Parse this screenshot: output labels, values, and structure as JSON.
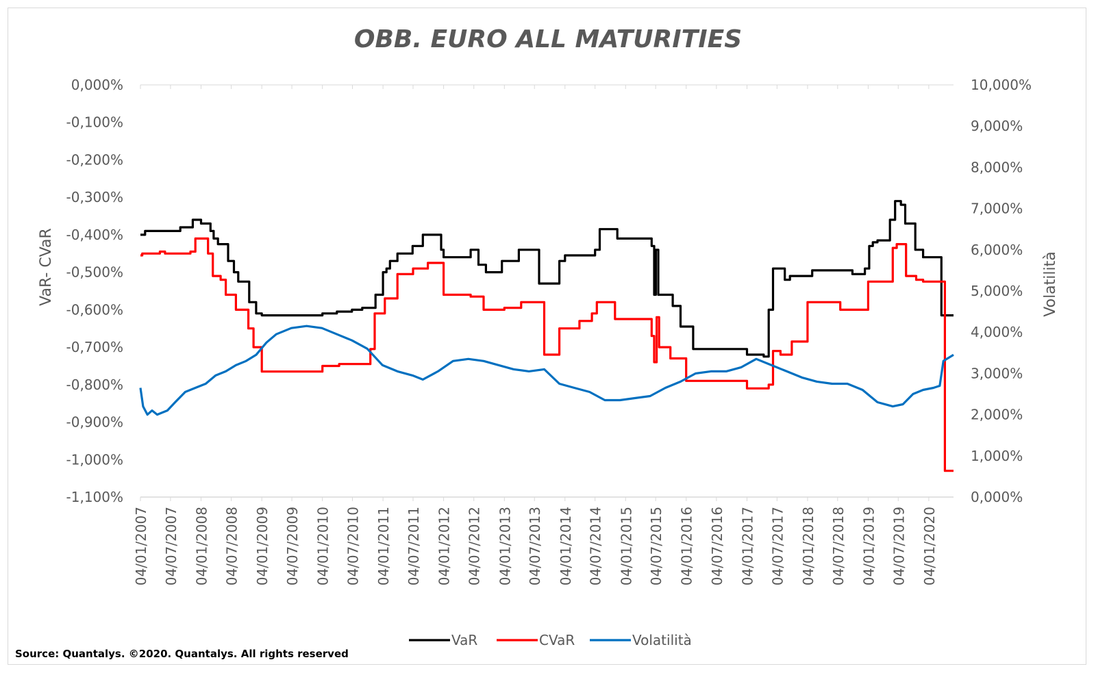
{
  "chart_data": {
    "type": "line",
    "title": "OBB. EURO ALL MATURITIES",
    "ylabel_left": "VaR- CVaR",
    "ylabel_right": "Volatilità",
    "source": "Source: Quantalys. ©2020. Quantalys. All rights reserved",
    "legend_position": "bottom",
    "grid": false,
    "x_start": "2007-01-04",
    "x_end": "2020-06-01",
    "x_tick_labels": [
      "04/01/2007",
      "04/07/2007",
      "04/01/2008",
      "04/07/2008",
      "04/01/2009",
      "04/07/2009",
      "04/01/2010",
      "04/07/2010",
      "04/01/2011",
      "04/07/2011",
      "04/01/2012",
      "04/07/2012",
      "04/01/2013",
      "04/07/2013",
      "04/01/2014",
      "04/07/2014",
      "04/01/2015",
      "04/07/2015",
      "04/01/2016",
      "04/07/2016",
      "04/01/2017",
      "04/07/2017",
      "04/01/2018",
      "04/07/2018",
      "04/01/2019",
      "04/07/2019",
      "04/01/2020"
    ],
    "y_left": {
      "min": -1.1,
      "max": 0.0,
      "tick_labels": [
        "0,000%",
        "-0,100%",
        "-0,200%",
        "-0,300%",
        "-0,400%",
        "-0,500%",
        "-0,600%",
        "-0,700%",
        "-0,800%",
        "-0,900%",
        "-1,000%",
        "-1,100%"
      ]
    },
    "y_right": {
      "min": 0.0,
      "max": 10.0,
      "tick_labels": [
        "10,000%",
        "9,000%",
        "8,000%",
        "7,000%",
        "6,000%",
        "5,000%",
        "4,000%",
        "3,000%",
        "2,000%",
        "1,000%",
        "0,000%"
      ]
    },
    "series": [
      {
        "name": "VaR",
        "axis": "left",
        "color": "#000000",
        "step": true,
        "points": [
          [
            "2007-01-04",
            -0.4
          ],
          [
            "2007-02-01",
            -0.39
          ],
          [
            "2007-08-15",
            -0.39
          ],
          [
            "2007-09-01",
            -0.38
          ],
          [
            "2007-11-15",
            -0.36
          ],
          [
            "2008-01-04",
            -0.37
          ],
          [
            "2008-03-01",
            -0.39
          ],
          [
            "2008-03-20",
            -0.41
          ],
          [
            "2008-04-15",
            -0.425
          ],
          [
            "2008-06-15",
            -0.47
          ],
          [
            "2008-07-20",
            -0.5
          ],
          [
            "2008-08-15",
            -0.525
          ],
          [
            "2008-10-20",
            -0.58
          ],
          [
            "2008-12-01",
            -0.61
          ],
          [
            "2009-01-04",
            -0.615
          ],
          [
            "2009-07-01",
            -0.615
          ],
          [
            "2010-01-04",
            -0.61
          ],
          [
            "2010-04-01",
            -0.605
          ],
          [
            "2010-07-01",
            -0.6
          ],
          [
            "2010-09-01",
            -0.595
          ],
          [
            "2010-11-20",
            -0.56
          ],
          [
            "2011-01-04",
            -0.5
          ],
          [
            "2011-01-25",
            -0.49
          ],
          [
            "2011-02-15",
            -0.47
          ],
          [
            "2011-04-01",
            -0.45
          ],
          [
            "2011-07-01",
            -0.43
          ],
          [
            "2011-09-01",
            -0.4
          ],
          [
            "2011-12-20",
            -0.44
          ],
          [
            "2012-01-04",
            -0.46
          ],
          [
            "2012-06-15",
            -0.44
          ],
          [
            "2012-08-01",
            -0.48
          ],
          [
            "2012-09-15",
            -0.5
          ],
          [
            "2012-12-20",
            -0.47
          ],
          [
            "2013-04-01",
            -0.44
          ],
          [
            "2013-08-01",
            -0.53
          ],
          [
            "2013-11-15",
            -0.53
          ],
          [
            "2013-12-01",
            -0.47
          ],
          [
            "2014-01-04",
            -0.455
          ],
          [
            "2014-07-04",
            -0.44
          ],
          [
            "2014-08-01",
            -0.385
          ],
          [
            "2014-11-15",
            -0.41
          ],
          [
            "2015-06-10",
            -0.43
          ],
          [
            "2015-06-25",
            -0.56
          ],
          [
            "2015-07-05",
            -0.44
          ],
          [
            "2015-07-20",
            -0.56
          ],
          [
            "2015-10-15",
            -0.59
          ],
          [
            "2015-12-01",
            -0.645
          ],
          [
            "2016-01-04",
            -0.645
          ],
          [
            "2016-02-15",
            -0.705
          ],
          [
            "2016-11-15",
            -0.705
          ],
          [
            "2017-01-04",
            -0.72
          ],
          [
            "2017-04-15",
            -0.725
          ],
          [
            "2017-05-15",
            -0.6
          ],
          [
            "2017-06-10",
            -0.49
          ],
          [
            "2017-08-20",
            -0.52
          ],
          [
            "2017-09-20",
            -0.51
          ],
          [
            "2018-02-01",
            -0.495
          ],
          [
            "2018-10-01",
            -0.505
          ],
          [
            "2018-12-15",
            -0.49
          ],
          [
            "2019-01-10",
            -0.43
          ],
          [
            "2019-02-01",
            -0.42
          ],
          [
            "2019-03-01",
            -0.415
          ],
          [
            "2019-05-15",
            -0.36
          ],
          [
            "2019-06-15",
            -0.31
          ],
          [
            "2019-07-20",
            -0.32
          ],
          [
            "2019-08-15",
            -0.37
          ],
          [
            "2019-10-15",
            -0.44
          ],
          [
            "2019-12-01",
            -0.46
          ],
          [
            "2020-03-15",
            -0.46
          ],
          [
            "2020-03-20",
            -0.615
          ],
          [
            "2020-06-01",
            -0.615
          ]
        ]
      },
      {
        "name": "CVaR",
        "axis": "left",
        "color": "#ff0000",
        "step": true,
        "points": [
          [
            "2007-01-04",
            -0.455
          ],
          [
            "2007-01-15",
            -0.45
          ],
          [
            "2007-05-01",
            -0.445
          ],
          [
            "2007-06-01",
            -0.45
          ],
          [
            "2007-11-01",
            -0.445
          ],
          [
            "2007-12-01",
            -0.41
          ],
          [
            "2008-02-15",
            -0.45
          ],
          [
            "2008-03-15",
            -0.51
          ],
          [
            "2008-05-01",
            -0.52
          ],
          [
            "2008-06-01",
            -0.56
          ],
          [
            "2008-08-01",
            -0.6
          ],
          [
            "2008-10-15",
            -0.65
          ],
          [
            "2008-11-15",
            -0.7
          ],
          [
            "2009-01-04",
            -0.765
          ],
          [
            "2010-01-04",
            -0.75
          ],
          [
            "2010-04-15",
            -0.745
          ],
          [
            "2010-10-20",
            -0.705
          ],
          [
            "2010-11-15",
            -0.61
          ],
          [
            "2011-01-15",
            -0.57
          ],
          [
            "2011-04-01",
            -0.505
          ],
          [
            "2011-07-04",
            -0.49
          ],
          [
            "2011-10-01",
            -0.475
          ],
          [
            "2012-01-04",
            -0.56
          ],
          [
            "2012-06-15",
            -0.565
          ],
          [
            "2012-09-01",
            -0.6
          ],
          [
            "2013-01-04",
            -0.595
          ],
          [
            "2013-04-15",
            -0.58
          ],
          [
            "2013-09-01",
            -0.72
          ],
          [
            "2013-12-01",
            -0.65
          ],
          [
            "2014-04-01",
            -0.63
          ],
          [
            "2014-06-15",
            -0.61
          ],
          [
            "2014-07-15",
            -0.58
          ],
          [
            "2014-11-01",
            -0.625
          ],
          [
            "2015-06-10",
            -0.67
          ],
          [
            "2015-06-25",
            -0.74
          ],
          [
            "2015-07-10",
            -0.62
          ],
          [
            "2015-07-25",
            -0.7
          ],
          [
            "2015-10-01",
            -0.73
          ],
          [
            "2016-01-04",
            -0.79
          ],
          [
            "2016-12-15",
            -0.79
          ],
          [
            "2017-01-04",
            -0.81
          ],
          [
            "2017-05-15",
            -0.8
          ],
          [
            "2017-06-10",
            -0.71
          ],
          [
            "2017-07-25",
            -0.72
          ],
          [
            "2017-10-01",
            -0.685
          ],
          [
            "2018-01-04",
            -0.58
          ],
          [
            "2018-07-20",
            -0.6
          ],
          [
            "2019-01-04",
            -0.525
          ],
          [
            "2019-06-01",
            -0.435
          ],
          [
            "2019-06-25",
            -0.425
          ],
          [
            "2019-08-20",
            -0.51
          ],
          [
            "2019-10-20",
            -0.52
          ],
          [
            "2019-12-01",
            -0.525
          ],
          [
            "2020-04-01",
            -0.525
          ],
          [
            "2020-04-10",
            -1.03
          ],
          [
            "2020-06-01",
            -1.03
          ]
        ]
      },
      {
        "name": "Volatilità",
        "axis": "right",
        "color": "#0070c0",
        "step": false,
        "points": [
          [
            "2007-01-04",
            2.65
          ],
          [
            "2007-01-20",
            2.2
          ],
          [
            "2007-02-15",
            2.0
          ],
          [
            "2007-03-15",
            2.1
          ],
          [
            "2007-04-15",
            2.0
          ],
          [
            "2007-05-15",
            2.05
          ],
          [
            "2007-06-15",
            2.1
          ],
          [
            "2007-08-01",
            2.3
          ],
          [
            "2007-10-01",
            2.55
          ],
          [
            "2007-12-01",
            2.65
          ],
          [
            "2008-02-01",
            2.75
          ],
          [
            "2008-04-01",
            2.95
          ],
          [
            "2008-06-01",
            3.05
          ],
          [
            "2008-08-01",
            3.2
          ],
          [
            "2008-10-01",
            3.3
          ],
          [
            "2008-12-01",
            3.45
          ],
          [
            "2009-02-01",
            3.75
          ],
          [
            "2009-04-01",
            3.95
          ],
          [
            "2009-07-01",
            4.1
          ],
          [
            "2009-10-01",
            4.15
          ],
          [
            "2010-01-01",
            4.1
          ],
          [
            "2010-04-01",
            3.95
          ],
          [
            "2010-07-01",
            3.8
          ],
          [
            "2010-10-01",
            3.6
          ],
          [
            "2011-01-01",
            3.2
          ],
          [
            "2011-04-01",
            3.05
          ],
          [
            "2011-07-01",
            2.95
          ],
          [
            "2011-09-01",
            2.85
          ],
          [
            "2011-12-01",
            3.05
          ],
          [
            "2012-03-01",
            3.3
          ],
          [
            "2012-06-01",
            3.35
          ],
          [
            "2012-09-01",
            3.3
          ],
          [
            "2012-12-01",
            3.2
          ],
          [
            "2013-03-01",
            3.1
          ],
          [
            "2013-06-01",
            3.05
          ],
          [
            "2013-09-01",
            3.1
          ],
          [
            "2013-12-01",
            2.75
          ],
          [
            "2014-03-01",
            2.65
          ],
          [
            "2014-06-01",
            2.55
          ],
          [
            "2014-09-01",
            2.35
          ],
          [
            "2014-12-01",
            2.35
          ],
          [
            "2015-03-01",
            2.4
          ],
          [
            "2015-06-01",
            2.45
          ],
          [
            "2015-09-01",
            2.65
          ],
          [
            "2015-12-01",
            2.8
          ],
          [
            "2016-03-01",
            3.0
          ],
          [
            "2016-06-01",
            3.05
          ],
          [
            "2016-09-01",
            3.05
          ],
          [
            "2016-12-01",
            3.15
          ],
          [
            "2017-03-01",
            3.35
          ],
          [
            "2017-06-01",
            3.2
          ],
          [
            "2017-09-01",
            3.05
          ],
          [
            "2017-12-01",
            2.9
          ],
          [
            "2018-03-01",
            2.8
          ],
          [
            "2018-06-01",
            2.75
          ],
          [
            "2018-09-01",
            2.75
          ],
          [
            "2018-12-01",
            2.6
          ],
          [
            "2019-03-01",
            2.3
          ],
          [
            "2019-06-01",
            2.2
          ],
          [
            "2019-08-01",
            2.25
          ],
          [
            "2019-10-01",
            2.5
          ],
          [
            "2019-12-01",
            2.6
          ],
          [
            "2020-02-01",
            2.65
          ],
          [
            "2020-03-10",
            2.7
          ],
          [
            "2020-04-01",
            3.3
          ],
          [
            "2020-06-01",
            3.45
          ]
        ]
      }
    ]
  }
}
